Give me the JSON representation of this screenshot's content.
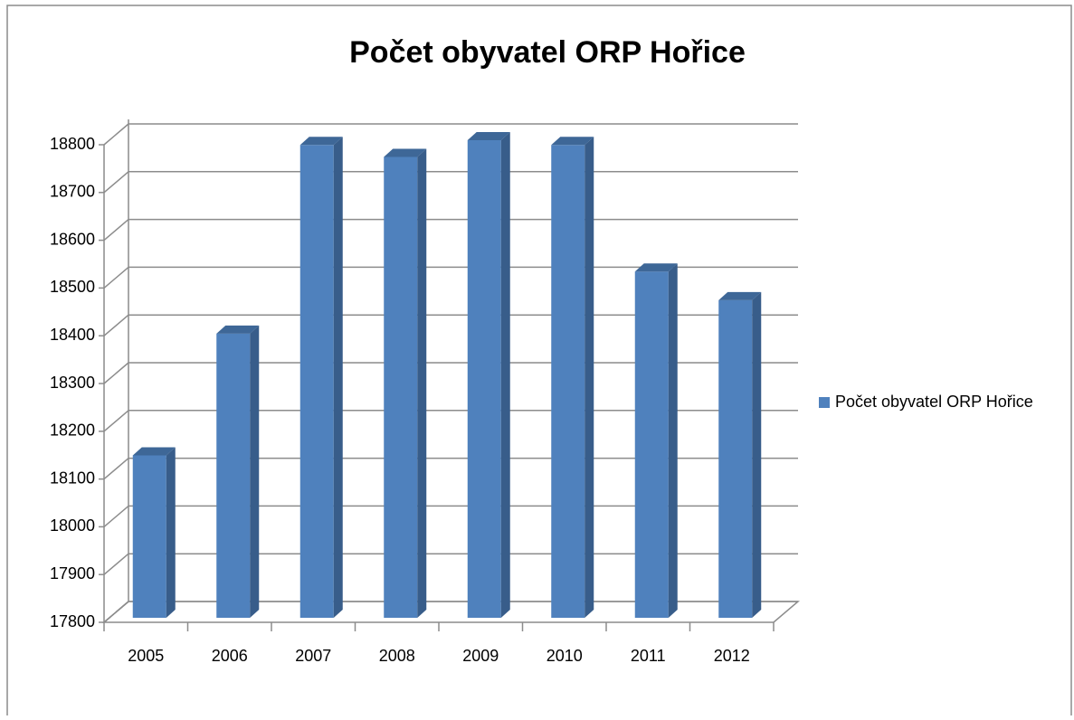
{
  "chart_data": {
    "type": "bar3d",
    "title": "Počet obyvatel ORP Hořice",
    "categories": [
      "2005",
      "2006",
      "2007",
      "2008",
      "2009",
      "2010",
      "2011",
      "2012"
    ],
    "series": [
      {
        "name": "Počet obyvatel ORP Hořice",
        "color": "#4f81bd",
        "values": [
          18140,
          18395,
          18790,
          18765,
          18800,
          18790,
          18525,
          18465
        ]
      }
    ],
    "ylim": [
      17800,
      18800
    ],
    "yticks": [
      17800,
      17900,
      18000,
      18100,
      18200,
      18300,
      18400,
      18500,
      18600,
      18700,
      18800
    ],
    "grid": true,
    "legend": "right"
  }
}
